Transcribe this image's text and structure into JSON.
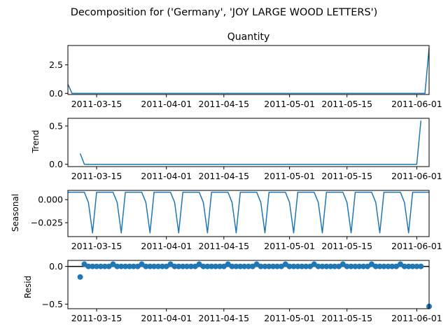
{
  "figure": {
    "title": "Decomposition for ('Germany', 'JOY LARGE WOOD LETTERS')"
  },
  "chart_data": [
    {
      "type": "line",
      "title": "Quantity",
      "ylabel": "",
      "x_start": "2011-03-08",
      "x_end": "2011-06-04",
      "xticks": [
        "2011-03-15",
        "2011-04-01",
        "2011-04-15",
        "2011-05-01",
        "2011-05-15",
        "2011-06-01"
      ],
      "ylim": [
        -0.1,
        4.2
      ],
      "yticks": [
        0.0,
        2.5
      ],
      "yticklabels": [
        "0.0",
        "2.5"
      ],
      "color": "#1f77b4",
      "series": [
        {
          "x": [
            "2011-03-08",
            "2011-03-09",
            "2011-06-03",
            "2011-06-04"
          ],
          "values": [
            0.8,
            0.0,
            0.0,
            4.0
          ]
        }
      ]
    },
    {
      "type": "line",
      "title": "",
      "ylabel": "Trend",
      "x_start": "2011-03-08",
      "x_end": "2011-06-04",
      "xticks": [
        "2011-03-15",
        "2011-04-01",
        "2011-04-15",
        "2011-05-01",
        "2011-05-15",
        "2011-06-01"
      ],
      "ylim": [
        -0.03,
        0.6
      ],
      "yticks": [
        0.0,
        0.5
      ],
      "yticklabels": [
        "0.0",
        "0.5"
      ],
      "color": "#1f77b4",
      "series": [
        {
          "x": [
            "2011-03-11",
            "2011-03-12",
            "2011-06-01",
            "2011-06-02"
          ],
          "values": [
            0.14,
            0.0,
            0.0,
            0.57
          ]
        }
      ]
    },
    {
      "type": "line",
      "title": "",
      "ylabel": "Seasonal",
      "x_start": "2011-03-08",
      "x_end": "2011-06-04",
      "xticks": [
        "2011-03-15",
        "2011-04-01",
        "2011-04-15",
        "2011-05-01",
        "2011-05-15",
        "2011-06-01"
      ],
      "ylim": [
        -0.04,
        0.01
      ],
      "yticks": [
        0.0,
        -0.025
      ],
      "yticklabels": [
        "0.000",
        "−0.025"
      ],
      "color": "#1f77b4",
      "seasonal_pattern": [
        0.008,
        0.008,
        0.008,
        0.008,
        0.008,
        -0.003,
        -0.036
      ],
      "series": []
    },
    {
      "type": "scatter",
      "title": "",
      "ylabel": "Resid",
      "x_start": "2011-03-08",
      "x_end": "2011-06-04",
      "xticks": [
        "2011-03-15",
        "2011-04-01",
        "2011-04-15",
        "2011-05-01",
        "2011-05-15",
        "2011-06-01"
      ],
      "ylim": [
        -0.56,
        0.08
      ],
      "yticks": [
        0.0,
        -0.5
      ],
      "yticklabels": [
        "0.0",
        "−0.5"
      ],
      "color": "#1f77b4",
      "hline": 0,
      "series": [
        {
          "x": [
            "2011-03-11",
            "2011-03-12",
            "2011-06-02",
            "2011-06-04"
          ],
          "values": [
            -0.14,
            0.03,
            0.0,
            -0.53
          ]
        }
      ]
    }
  ]
}
